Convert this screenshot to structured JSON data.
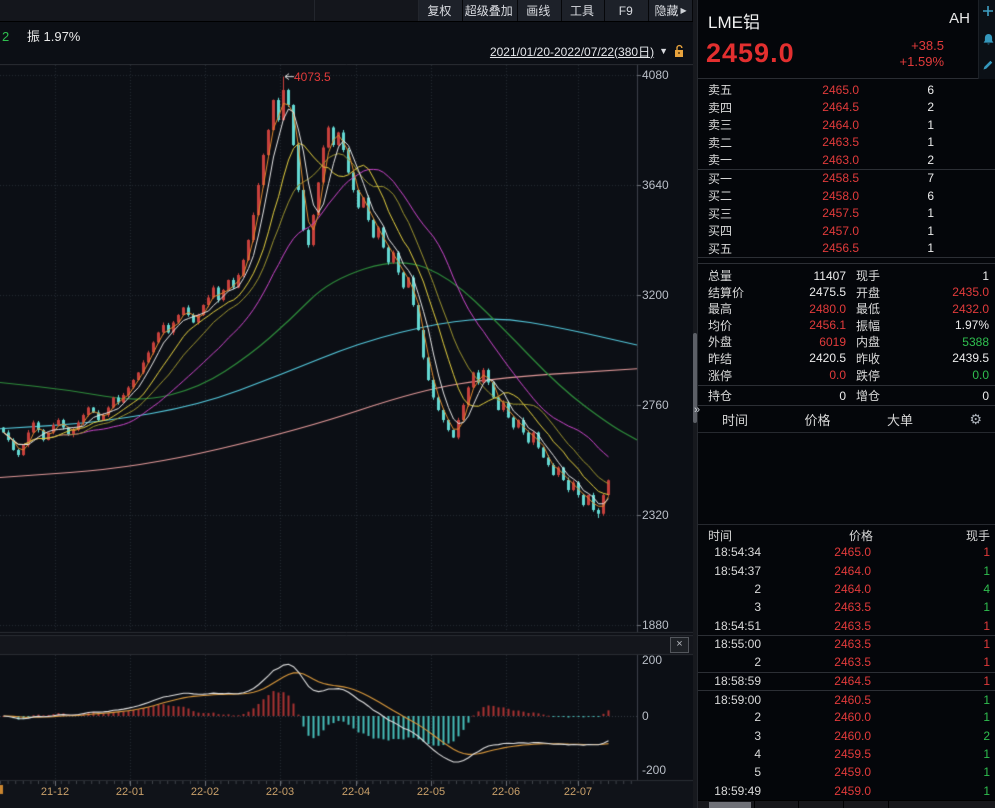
{
  "toolbar": {
    "items": [
      {
        "label": "复权"
      },
      {
        "label": "超级叠加"
      },
      {
        "label": "画线"
      },
      {
        "label": "工具"
      },
      {
        "label": "F9"
      },
      {
        "label": "隐藏",
        "arrow": "▶"
      }
    ]
  },
  "chart_header": {
    "left_value": "2",
    "amplitude_label": "振",
    "amplitude_value": "1.97%",
    "date_range": "2021/01/20-2022/07/22(380日)",
    "dropdown_arrow": "▼"
  },
  "quote": {
    "name": "LME铝",
    "market": "AH",
    "last": "2459.0",
    "change": "+38.5",
    "change_pct": "+1.59%"
  },
  "order_book": {
    "asks": [
      {
        "l": "卖五",
        "p": "2465.0",
        "q": "6"
      },
      {
        "l": "卖四",
        "p": "2464.5",
        "q": "2"
      },
      {
        "l": "卖三",
        "p": "2464.0",
        "q": "1"
      },
      {
        "l": "卖二",
        "p": "2463.5",
        "q": "1"
      },
      {
        "l": "卖一",
        "p": "2463.0",
        "q": "2"
      }
    ],
    "bids": [
      {
        "l": "买一",
        "p": "2458.5",
        "q": "7"
      },
      {
        "l": "买二",
        "p": "2458.0",
        "q": "6"
      },
      {
        "l": "买三",
        "p": "2457.5",
        "q": "1"
      },
      {
        "l": "买四",
        "p": "2457.0",
        "q": "1"
      },
      {
        "l": "买五",
        "p": "2456.5",
        "q": "1"
      }
    ]
  },
  "stats": {
    "rows": [
      {
        "l1": "总量",
        "v1": "11407",
        "c1": "w",
        "l2": "现手",
        "v2": "1",
        "c2": "w"
      },
      {
        "l1": "结算价",
        "v1": "2475.5",
        "c1": "w",
        "l2": "开盘",
        "v2": "2435.0",
        "c2": "r"
      },
      {
        "l1": "最高",
        "v1": "2480.0",
        "c1": "r",
        "l2": "最低",
        "v2": "2432.0",
        "c2": "r"
      },
      {
        "l1": "均价",
        "v1": "2456.1",
        "c1": "r",
        "l2": "振幅",
        "v2": "1.97%",
        "c2": "w"
      },
      {
        "l1": "外盘",
        "v1": "6019",
        "c1": "r",
        "l2": "内盘",
        "v2": "5388",
        "c2": "g"
      },
      {
        "l1": "昨结",
        "v1": "2420.5",
        "c1": "w",
        "l2": "昨收",
        "v2": "2439.5",
        "c2": "w"
      },
      {
        "l1": "涨停",
        "v1": "0.0",
        "c1": "r",
        "l2": "跌停",
        "v2": "0.0",
        "c2": "g"
      },
      {
        "l1": "持仓",
        "v1": "0",
        "c1": "w",
        "l2": "增仓",
        "v2": "0",
        "c2": "w",
        "sep": 1
      }
    ]
  },
  "panel_tabs": {
    "items": [
      "时间",
      "价格",
      "大单"
    ],
    "gear": "⚙"
  },
  "trades": {
    "headers": {
      "time": "时间",
      "price": "价格",
      "qty": "现手"
    },
    "rows": [
      {
        "t": "18:54:34",
        "p": "2465.0",
        "q": "1",
        "qc": "r"
      },
      {
        "t": "18:54:37",
        "p": "2464.0",
        "q": "1",
        "qc": "g"
      },
      {
        "t": "2",
        "p": "2464.0",
        "q": "4",
        "qc": "g"
      },
      {
        "t": "3",
        "p": "2463.5",
        "q": "1",
        "qc": "g"
      },
      {
        "t": "18:54:51",
        "p": "2463.5",
        "q": "1",
        "qc": "r"
      },
      {
        "t": "18:55:00",
        "p": "2463.5",
        "q": "1",
        "qc": "r",
        "sep": 1
      },
      {
        "t": "2",
        "p": "2463.5",
        "q": "1",
        "qc": "r"
      },
      {
        "t": "18:58:59",
        "p": "2464.5",
        "q": "1",
        "qc": "r",
        "sep": 1
      },
      {
        "t": "18:59:00",
        "p": "2460.5",
        "q": "1",
        "qc": "g",
        "sep": 1
      },
      {
        "t": "2",
        "p": "2460.0",
        "q": "1",
        "qc": "g"
      },
      {
        "t": "3",
        "p": "2460.0",
        "q": "2",
        "qc": "g"
      },
      {
        "t": "4",
        "p": "2459.5",
        "q": "1",
        "qc": "g"
      },
      {
        "t": "5",
        "p": "2459.0",
        "q": "1",
        "qc": "g"
      },
      {
        "t": "18:59:49",
        "p": "2459.0",
        "q": "1",
        "qc": "g"
      }
    ]
  },
  "macd_panel": {
    "close_label": "×"
  },
  "divider": {
    "collapse_arrow": "»"
  },
  "chart_data": {
    "type": "candlestick+macd",
    "title": "LME铝 日K线 2021/01/20-2022/07/22(380日)",
    "y_axis": {
      "labels": [
        "4080",
        "3640",
        "3200",
        "2760",
        "2320",
        "1880"
      ]
    },
    "macd_axis": {
      "labels": [
        "200",
        "0",
        "-200"
      ]
    },
    "x_axis": {
      "labels": [
        "21-12",
        "22-01",
        "22-02",
        "22-03",
        "22-04",
        "22-05",
        "22-06",
        "22-07"
      ]
    },
    "annotation": {
      "text": "4073.5",
      "value": 4073.5,
      "index": 56
    },
    "low_marker": {
      "value": 2308,
      "index": 119
    },
    "open_first": 2670,
    "closes": [
      2650,
      2620,
      2580,
      2560,
      2600,
      2650,
      2690,
      2660,
      2620,
      2650,
      2680,
      2700,
      2670,
      2640,
      2660,
      2690,
      2720,
      2750,
      2730,
      2700,
      2720,
      2750,
      2790,
      2770,
      2800,
      2830,
      2860,
      2890,
      2930,
      2970,
      3010,
      3050,
      3080,
      3050,
      3090,
      3120,
      3150,
      3120,
      3090,
      3120,
      3160,
      3190,
      3230,
      3180,
      3220,
      3260,
      3230,
      3280,
      3340,
      3420,
      3520,
      3640,
      3760,
      3860,
      3980,
      3900,
      4020,
      3960,
      3800,
      3620,
      3460,
      3400,
      3520,
      3650,
      3790,
      3870,
      3800,
      3850,
      3780,
      3690,
      3620,
      3550,
      3590,
      3500,
      3430,
      3470,
      3390,
      3330,
      3370,
      3290,
      3230,
      3270,
      3160,
      3060,
      2950,
      2860,
      2790,
      2740,
      2700,
      2660,
      2630,
      2700,
      2760,
      2830,
      2890,
      2850,
      2900,
      2850,
      2790,
      2740,
      2770,
      2710,
      2670,
      2700,
      2650,
      2610,
      2650,
      2590,
      2550,
      2520,
      2480,
      2510,
      2460,
      2420,
      2450,
      2400,
      2360,
      2400,
      2340,
      2325,
      2400,
      2459
    ],
    "overlays": {
      "green": [
        [
          0,
          2850
        ],
        [
          70,
          2820
        ],
        [
          140,
          2770
        ],
        [
          200,
          2830
        ],
        [
          250,
          2960
        ],
        [
          290,
          3100
        ],
        [
          330,
          3260
        ],
        [
          400,
          3350
        ],
        [
          450,
          3270
        ],
        [
          500,
          3080
        ],
        [
          560,
          2830
        ],
        [
          610,
          2680
        ],
        [
          637,
          2620
        ]
      ],
      "cyan": [
        [
          0,
          2665
        ],
        [
          100,
          2690
        ],
        [
          200,
          2760
        ],
        [
          280,
          2880
        ],
        [
          360,
          3010
        ],
        [
          440,
          3090
        ],
        [
          500,
          3110
        ],
        [
          560,
          3070
        ],
        [
          637,
          3000
        ]
      ],
      "pink": [
        [
          0,
          2470
        ],
        [
          140,
          2510
        ],
        [
          300,
          2660
        ],
        [
          420,
          2820
        ],
        [
          500,
          2870
        ],
        [
          637,
          2905
        ]
      ]
    },
    "ma_windows": {
      "orange": 3,
      "white": 5,
      "yellow": 10,
      "olive": 15,
      "magenta": 25
    },
    "colors": {
      "up": "#c8403c",
      "down": "#63d8d2",
      "ma_white": "#e6e6e6",
      "ma_yellow": "#e3cf3f",
      "ma_olive": "#9d9530",
      "ma_orange": "#df8a2e",
      "ma_magenta": "#cc46cc",
      "ma_green": "#2f8f3c",
      "ma_cyan": "#55cbdf",
      "ma_pink": "#e49a9a",
      "hist_up": "#a83232",
      "hist_down": "#46bdb9",
      "dif": "#e0e0e0",
      "dea": "#dc9a3c"
    }
  }
}
